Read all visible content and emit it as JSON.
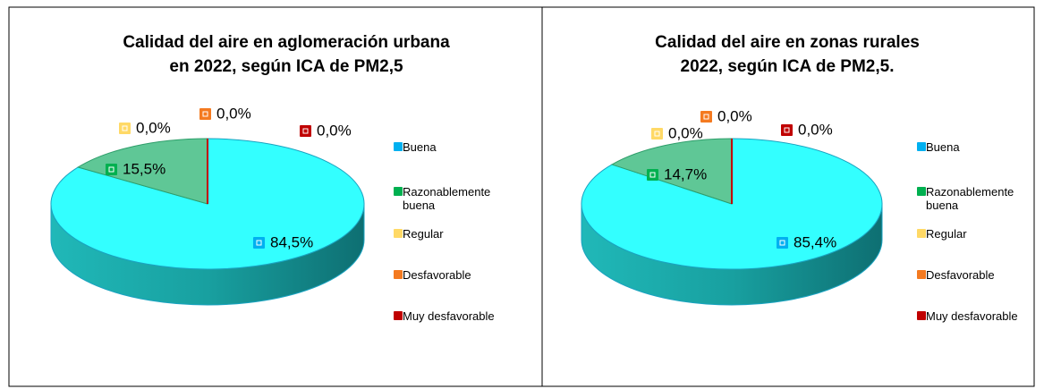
{
  "chart_data": [
    {
      "type": "pie",
      "title": [
        "Calidad del aire en aglomeración urbana",
        "en 2022, según ICA de PM2,5"
      ],
      "categories": [
        "Buena",
        "Razonablemente buena",
        "Regular",
        "Desfavorable",
        "Muy desfavorable"
      ],
      "values": [
        84.5,
        15.5,
        0,
        0,
        0
      ],
      "value_labels": [
        "84,5%",
        "15,5%",
        "0,0%",
        "0,0%",
        "0,0%"
      ],
      "colors": [
        "#00b0f0",
        "#00b050",
        "#ffd966",
        "#f47a20",
        "#c00000"
      ]
    },
    {
      "type": "pie",
      "title": [
        "Calidad del aire en zonas rurales",
        "2022, según ICA de PM2,5."
      ],
      "categories": [
        "Buena",
        "Razonablemente buena",
        "Regular",
        "Desfavorable",
        "Muy desfavorable"
      ],
      "values": [
        85.4,
        14.7,
        0,
        0,
        0
      ],
      "value_labels": [
        "85,4%",
        "14,7%",
        "0,0%",
        "0,0%",
        "0,0%"
      ],
      "colors": [
        "#00b0f0",
        "#00b050",
        "#ffd966",
        "#f47a20",
        "#c00000"
      ]
    }
  ]
}
